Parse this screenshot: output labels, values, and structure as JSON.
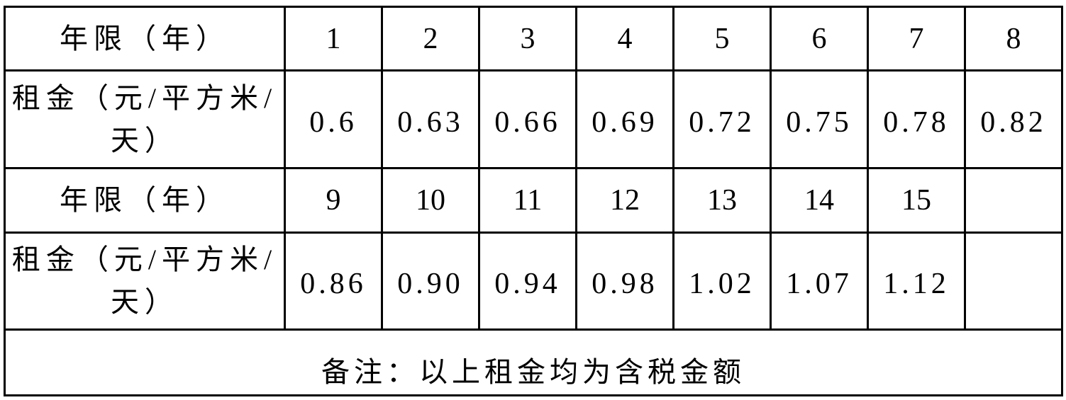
{
  "table": {
    "year_label": "年限（年）",
    "rent_label": "租金（元/平方米/天）",
    "rows": [
      {
        "years": [
          "1",
          "2",
          "3",
          "4",
          "5",
          "6",
          "7",
          "8"
        ],
        "rents": [
          "0.6",
          "0.63",
          "0.66",
          "0.69",
          "0.72",
          "0.75",
          "0.78",
          "0.82"
        ]
      },
      {
        "years": [
          "9",
          "10",
          "11",
          "12",
          "13",
          "14",
          "15",
          ""
        ],
        "rents": [
          "0.86",
          "0.90",
          "0.94",
          "0.98",
          "1.02",
          "1.07",
          "1.12",
          ""
        ]
      }
    ],
    "note": "备注：以上租金均为含税金额"
  }
}
